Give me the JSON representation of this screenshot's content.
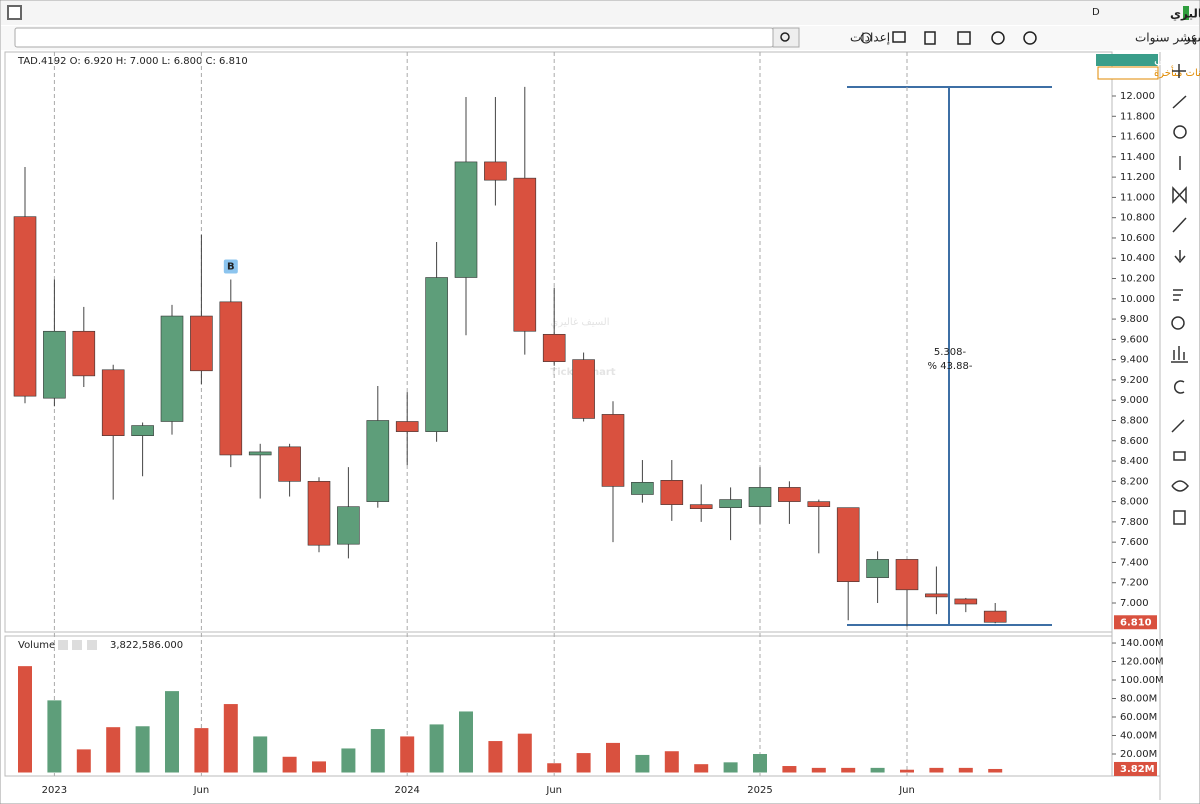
{
  "header": {
    "title": "السيف غاليري",
    "flag": "D"
  },
  "toolbar": {
    "interval": "شهر",
    "period": "عشر سنوات",
    "settings": "إعدادات"
  },
  "watermark": {
    "arabic": "السيف غاليري",
    "brand": "TickerChart"
  },
  "legend": {
    "ohlc": "TAD.4192   O: 6.920   H: 7.000   L: 6.800   C: 6.810",
    "volume_name": "Volume",
    "volume_value": "3,822,586.000"
  },
  "pane": {
    "drawings": "رسوماتي",
    "delayed": "البيانات متأخرة"
  },
  "measure": {
    "change": "5.308-",
    "percent": "% 43.88-"
  },
  "chart_data": [
    {
      "type": "candlestick",
      "categories": [
        null,
        "2023",
        null,
        null,
        null,
        null,
        "Jun",
        null,
        null,
        null,
        null,
        null,
        null,
        "2024",
        null,
        null,
        null,
        null,
        "Jun",
        null,
        null,
        null,
        null,
        null,
        null,
        "2025",
        null,
        null,
        null,
        null,
        "Jun",
        null,
        null,
        null
      ],
      "open": [
        10.81,
        9.02,
        9.68,
        9.3,
        8.65,
        8.79,
        9.83,
        9.97,
        8.46,
        8.54,
        8.2,
        7.58,
        8.0,
        8.79,
        8.69,
        10.21,
        11.35,
        11.19,
        9.65,
        9.4,
        8.86,
        8.07,
        8.21,
        7.97,
        7.94,
        7.95,
        8.14,
        8.0,
        7.94,
        7.25,
        7.43,
        7.09,
        7.04,
        6.92
      ],
      "high": [
        11.3,
        10.19,
        9.92,
        9.35,
        8.78,
        9.94,
        10.63,
        10.19,
        8.57,
        8.57,
        8.24,
        8.34,
        9.14,
        9.08,
        10.56,
        11.99,
        11.99,
        12.09,
        10.11,
        9.47,
        8.99,
        8.41,
        8.41,
        8.17,
        8.14,
        8.34,
        8.2,
        8.02,
        7.94,
        7.51,
        7.43,
        7.36,
        7.05,
        7.0
      ],
      "low": [
        8.97,
        8.94,
        9.13,
        8.02,
        8.25,
        8.66,
        9.16,
        8.34,
        8.03,
        8.05,
        7.5,
        7.44,
        7.94,
        8.36,
        8.59,
        9.64,
        10.92,
        9.45,
        9.34,
        8.79,
        7.6,
        7.99,
        7.81,
        7.8,
        7.62,
        7.78,
        7.78,
        7.49,
        6.83,
        7.0,
        6.77,
        6.89,
        6.91,
        6.8
      ],
      "close": [
        9.04,
        9.68,
        9.24,
        8.65,
        8.75,
        9.83,
        9.29,
        8.46,
        8.49,
        8.2,
        7.57,
        7.95,
        8.8,
        8.69,
        10.21,
        11.35,
        11.17,
        9.68,
        9.38,
        8.82,
        8.15,
        8.19,
        7.97,
        7.93,
        8.02,
        8.14,
        8.0,
        7.95,
        7.21,
        7.43,
        7.13,
        7.06,
        6.99,
        6.81
      ],
      "up_color": "#5e9e7a",
      "down_color": "#d9513f",
      "ylim": [
        6.714,
        12.434
      ],
      "yticks": [
        {
          "value": 7.0,
          "label": "7.000"
        },
        {
          "value": 7.2,
          "label": "7.200"
        },
        {
          "value": 7.4,
          "label": "7.400"
        },
        {
          "value": 7.6,
          "label": "7.600"
        },
        {
          "value": 7.8,
          "label": "7.800"
        },
        {
          "value": 8.0,
          "label": "8.000"
        },
        {
          "value": 8.2,
          "label": "8.200"
        },
        {
          "value": 8.4,
          "label": "8.400"
        },
        {
          "value": 8.6,
          "label": "8.600"
        },
        {
          "value": 8.8,
          "label": "8.800"
        },
        {
          "value": 9.0,
          "label": "9.000"
        },
        {
          "value": 9.2,
          "label": "9.200"
        },
        {
          "value": 9.4,
          "label": "9.400"
        },
        {
          "value": 9.6,
          "label": "9.600"
        },
        {
          "value": 9.8,
          "label": "9.800"
        },
        {
          "value": 10.0,
          "label": "10.000"
        },
        {
          "value": 10.2,
          "label": "10.200"
        },
        {
          "value": 10.4,
          "label": "10.400"
        },
        {
          "value": 10.6,
          "label": "10.600"
        },
        {
          "value": 10.8,
          "label": "10.800"
        },
        {
          "value": 11.0,
          "label": "11.000"
        },
        {
          "value": 11.2,
          "label": "11.200"
        },
        {
          "value": 11.4,
          "label": "11.400"
        },
        {
          "value": 11.6,
          "label": "11.600"
        },
        {
          "value": 11.8,
          "label": "11.800"
        },
        {
          "value": 12.0,
          "label": "12.000"
        }
      ],
      "last_value": 6.81,
      "last_label": "6.810",
      "annotations": [
        {
          "index": 7,
          "text": "B"
        }
      ]
    },
    {
      "type": "bar",
      "values": [
        115,
        78,
        25,
        49,
        50,
        88,
        48,
        74,
        39,
        17,
        12,
        26,
        47,
        39,
        52,
        66,
        34,
        42,
        10,
        21,
        32,
        19,
        23,
        9,
        11,
        20,
        7,
        5,
        5,
        5,
        3,
        5,
        5,
        3.82
      ],
      "ylim": [
        0,
        147.6
      ],
      "yticks": [
        {
          "value": 20,
          "label": "20.00M"
        },
        {
          "value": 40,
          "label": "40.00M"
        },
        {
          "value": 60,
          "label": "60.00M"
        },
        {
          "value": 80,
          "label": "80.00M"
        },
        {
          "value": 100,
          "label": "100.00M"
        },
        {
          "value": 120,
          "label": "120.00M"
        },
        {
          "value": 140,
          "label": "140.00M"
        }
      ],
      "last_value": 3.82,
      "last_label": "3.82M"
    }
  ]
}
